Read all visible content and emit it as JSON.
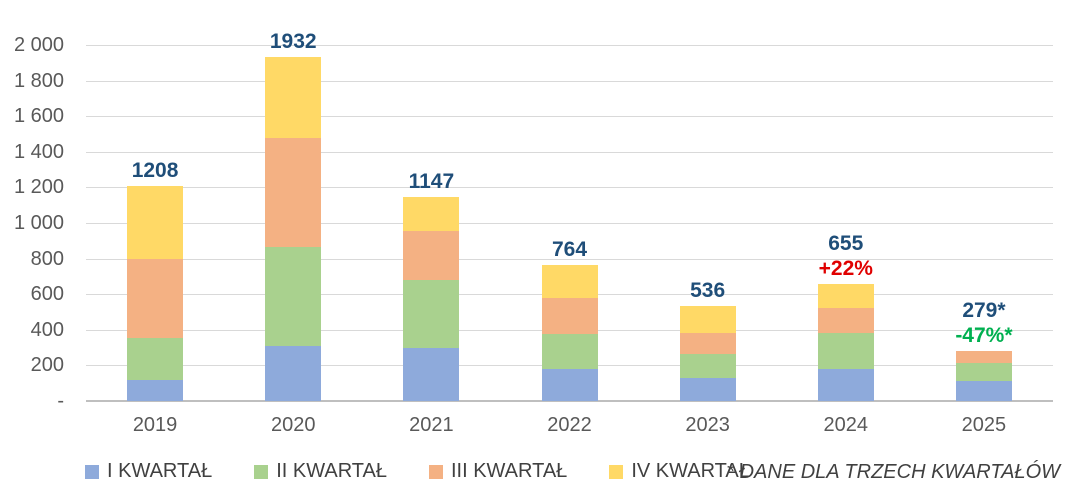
{
  "chart_data": {
    "type": "bar",
    "stacked": true,
    "title": "",
    "xlabel": "",
    "ylabel": "",
    "categories": [
      "2019",
      "2020",
      "2021",
      "2022",
      "2023",
      "2024",
      "2025"
    ],
    "series": [
      {
        "name": "I KWARTAŁ",
        "color": "#8eaadb",
        "values": [
          120,
          310,
          300,
          180,
          130,
          180,
          115
        ]
      },
      {
        "name": "II KWARTAŁ",
        "color": "#a9d18e",
        "values": [
          235,
          555,
          380,
          195,
          132,
          200,
          100
        ]
      },
      {
        "name": "III KWARTAŁ",
        "color": "#f4b183",
        "values": [
          445,
          615,
          275,
          205,
          118,
          145,
          64
        ]
      },
      {
        "name": "IV KWARTAŁ",
        "color": "#ffd966",
        "values": [
          408,
          452,
          192,
          184,
          156,
          130,
          0
        ]
      }
    ],
    "totals": [
      "1208",
      "1932",
      "1147",
      "764",
      "536",
      "655",
      "279*"
    ],
    "annotations": [
      {
        "category": "2024",
        "text": "+22%",
        "color": "#e00000"
      },
      {
        "category": "2025",
        "text": "-47%*",
        "color": "#00b050"
      }
    ],
    "y_axis": {
      "min": 0,
      "max": 2000,
      "step": 200,
      "tick_labels": [
        "-",
        "200",
        "400",
        "600",
        "800",
        "1 000",
        "1 200",
        "1 400",
        "1 600",
        "1 800",
        "2 000"
      ]
    },
    "grid": true,
    "legend_position": "bottom"
  },
  "footnote": "* DANE DLA TRZECH KWARTAŁÓW",
  "colors": {
    "total_label": "#1f4e79",
    "axis_text": "#595959",
    "legend_text": "#404040",
    "gridline": "#d9d9d9",
    "axis_line": "#bfbfbf",
    "increase_annotation": "#e00000",
    "decrease_annotation": "#00b050",
    "background": "#ffffff"
  }
}
